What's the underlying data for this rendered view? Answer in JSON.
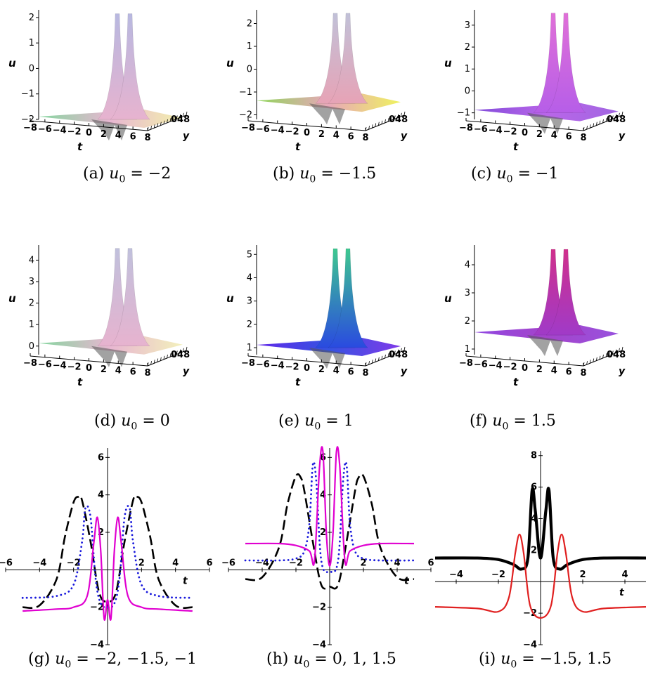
{
  "surface_panels": [
    {
      "caption_prefix": "(a)",
      "caption_var": "u",
      "caption_sub": "0",
      "caption_value": " = −2",
      "u0": -2,
      "zticks": [
        "2",
        "1",
        "0",
        "−1",
        "−2"
      ],
      "zrange": [
        -2,
        2.3
      ],
      "tlabels": [
        "−8",
        "−6",
        "−4",
        "−2",
        "0",
        "2",
        "4",
        "6",
        "8"
      ],
      "ylabels": "048",
      "xlabel": "t",
      "ylabel": "y",
      "zlabel": "u",
      "colors": {
        "left": "#7fd49a",
        "mid": "#e7b3cf",
        "right": "#f2f0a8",
        "peak": "#b8b8e0"
      }
    },
    {
      "caption_prefix": "(b)",
      "caption_var": "u",
      "caption_sub": "0",
      "caption_value": " = −1.5",
      "u0": -1.5,
      "zticks": [
        "2",
        "1",
        "0",
        "−1",
        "−2"
      ],
      "zrange": [
        -2.2,
        2.6
      ],
      "tlabels": [
        "−8",
        "−6",
        "−4",
        "−2",
        "0",
        "2",
        "4",
        "6",
        "8"
      ],
      "ylabels": "048",
      "xlabel": "t",
      "ylabel": "y",
      "zlabel": "u",
      "colors": {
        "left": "#8ad452",
        "mid": "#e7a3b6",
        "right": "#eef257",
        "peak": "#c1c1d8"
      }
    },
    {
      "caption_prefix": "(c)",
      "caption_var": "u",
      "caption_sub": "0",
      "caption_value": " = −1",
      "u0": -1,
      "zticks": [
        "3",
        "2",
        "1",
        "0",
        "−1"
      ],
      "zrange": [
        -1.3,
        3.7
      ],
      "tlabels": [
        "−8",
        "−6",
        "−4",
        "−2",
        "0",
        "2",
        "4",
        "6",
        "8"
      ],
      "ylabels": "048",
      "xlabel": "t",
      "ylabel": "y",
      "zlabel": "u",
      "colors": {
        "left": "#7a42d8",
        "mid": "#b65ee8",
        "right": "#9c5ee0",
        "peak": "#e070d8"
      }
    },
    {
      "caption_prefix": "(d)",
      "caption_var": "u",
      "caption_sub": "0",
      "caption_value": " = 0",
      "u0": 0,
      "zticks": [
        "4",
        "3",
        "2",
        "1",
        "0"
      ],
      "zrange": [
        -0.4,
        4.7
      ],
      "tlabels": [
        "−8",
        "−6",
        "−4",
        "−2",
        "0",
        "2",
        "4",
        "6",
        "8"
      ],
      "ylabels": "048",
      "xlabel": "t",
      "ylabel": "y",
      "zlabel": "u",
      "colors": {
        "left": "#7fd49a",
        "mid": "#e7b3cf",
        "right": "#f2f0b8",
        "peak": "#c0c0dc"
      }
    },
    {
      "caption_prefix": "(e)",
      "caption_var": "u",
      "caption_sub": "0",
      "caption_value": " = 1",
      "u0": 1,
      "zticks": [
        "5",
        "4",
        "3",
        "2",
        "1"
      ],
      "zrange": [
        0.7,
        5.4
      ],
      "tlabels": [
        "−8",
        "−6",
        "−4",
        "−2",
        "0",
        "2",
        "4",
        "6",
        "8"
      ],
      "ylabels": "048",
      "xlabel": "t",
      "ylabel": "y",
      "zlabel": "u",
      "colors": {
        "left": "#5a1ee8",
        "mid": "#2a4ae0",
        "right": "#7a30e8",
        "peak": "#3ec890"
      }
    },
    {
      "caption_prefix": "(f)",
      "caption_var": "u",
      "caption_sub": "0",
      "caption_value": " = 1.5",
      "u0": 1.5,
      "zticks": [
        "4",
        "3",
        "2",
        "1"
      ],
      "zrange": [
        0.8,
        4.7
      ],
      "tlabels": [
        "−8",
        "−6",
        "−4",
        "−2",
        "0",
        "2",
        "4",
        "6",
        "8"
      ],
      "ylabels": "048",
      "xlabel": "t",
      "ylabel": "y",
      "zlabel": "u",
      "colors": {
        "left": "#8a3ee0",
        "mid": "#a03ac8",
        "right": "#9248dc",
        "peak": "#d0308c"
      }
    }
  ],
  "chart_data": [
    {
      "type": "line",
      "caption_prefix": "(g)",
      "caption_var": "u",
      "caption_sub": "0",
      "caption_value": " = −2, −1.5, −1",
      "xlabel": "t",
      "xlim": [
        -6,
        6
      ],
      "ylim": [
        -4,
        6.5
      ],
      "xticks": [
        -6,
        -4,
        -2,
        2,
        4,
        6
      ],
      "xtick_labels": [
        "−6",
        "−4",
        "−2",
        "2",
        "4",
        "6"
      ],
      "yticks": [
        -4,
        -2,
        2,
        4,
        6
      ],
      "ytick_labels": [
        "−4",
        "−2",
        "2",
        "4",
        "6"
      ],
      "series": [
        {
          "u0": -2,
          "color": "#000000",
          "style": "dash",
          "width": 2.6,
          "width_param": 0.7,
          "x": [
            -5,
            -4,
            -3,
            -2.5,
            -2,
            -1.7,
            -1.5,
            -1,
            -0.5,
            0,
            0.5,
            1,
            1.5,
            1.7,
            2,
            2.5,
            3,
            4,
            5
          ],
          "y": [
            -2.0,
            -1.9,
            -0.5,
            1.8,
            3.6,
            3.9,
            3.7,
            1.5,
            -1.2,
            -1.7,
            -1.2,
            1.5,
            3.7,
            3.9,
            3.6,
            1.8,
            -0.5,
            -1.9,
            -2.0
          ]
        },
        {
          "u0": -1.5,
          "color": "#1a1adc",
          "style": "dot",
          "width": 2.8,
          "width_param": 0.55,
          "x": [
            -5,
            -3,
            -2,
            -1.5,
            -1.3,
            -1,
            -0.7,
            -0.4,
            0,
            0.4,
            0.7,
            1,
            1.3,
            1.5,
            2,
            3,
            5
          ],
          "y": [
            -1.5,
            -1.4,
            -0.8,
            1.5,
            3.3,
            2.8,
            -0.5,
            -1.8,
            -2.0,
            -1.8,
            -0.5,
            2.8,
            3.3,
            1.5,
            -0.8,
            -1.4,
            -1.5
          ]
        },
        {
          "u0": -1,
          "color": "#e000d0",
          "style": "solid",
          "width": 2.2,
          "width_param": 0.45,
          "x": [
            -5,
            -3,
            -2,
            -1.2,
            -0.8,
            -0.6,
            -0.4,
            -0.2,
            0,
            0.2,
            0.4,
            0.6,
            0.8,
            1.2,
            2,
            3,
            5
          ],
          "y": [
            -2.2,
            -2.1,
            -2.0,
            -1.4,
            1.5,
            2.8,
            1.0,
            -2.6,
            -1.6,
            -2.6,
            1.0,
            2.8,
            1.5,
            -1.4,
            -2.0,
            -2.1,
            -2.2
          ]
        }
      ]
    },
    {
      "type": "line",
      "caption_prefix": "(h)",
      "caption_var": "u",
      "caption_sub": "0",
      "caption_value": " = 0, 1, 1.5",
      "xlabel": "t",
      "xlim": [
        -6,
        6
      ],
      "ylim": [
        -4,
        6.5
      ],
      "xticks": [
        -6,
        -4,
        -2,
        2,
        4,
        6
      ],
      "xtick_labels": [
        "−6",
        "−4",
        "−2",
        "2",
        "4",
        "6"
      ],
      "yticks": [
        -4,
        -2,
        2,
        4,
        6
      ],
      "ytick_labels": [
        "−4",
        "−2",
        "2",
        "4",
        "6"
      ],
      "series": [
        {
          "u0": 0,
          "color": "#000000",
          "style": "dash",
          "width": 2.6,
          "x": [
            -5,
            -4,
            -3,
            -2.5,
            -2,
            -1.7,
            -1.5,
            -1,
            -0.5,
            0,
            0.5,
            1,
            1.5,
            1.7,
            2,
            2.5,
            3,
            4,
            5
          ],
          "y": [
            -0.5,
            -0.4,
            1.2,
            3.5,
            5.0,
            4.9,
            4.2,
            1.5,
            -0.8,
            -0.9,
            -0.8,
            1.5,
            4.2,
            4.9,
            5.0,
            3.5,
            1.2,
            -0.4,
            -0.5
          ]
        },
        {
          "u0": 1,
          "color": "#1a1adc",
          "style": "dot",
          "width": 2.8,
          "x": [
            -5,
            -3,
            -2,
            -1.5,
            -1.2,
            -1,
            -0.8,
            -0.5,
            0,
            0.5,
            0.8,
            1,
            1.2,
            1.5,
            2,
            3,
            5
          ],
          "y": [
            0.5,
            0.5,
            0.6,
            1.0,
            2.5,
            5.6,
            4.8,
            0.5,
            -0.1,
            0.5,
            4.8,
            5.6,
            2.5,
            1.0,
            0.6,
            0.5,
            0.5
          ]
        },
        {
          "u0": 1.5,
          "color": "#e000d0",
          "style": "solid",
          "width": 2.2,
          "x": [
            -5,
            -3,
            -2,
            -1.2,
            -0.9,
            -0.6,
            -0.4,
            -0.2,
            0,
            0.2,
            0.4,
            0.6,
            0.9,
            1.2,
            2,
            3,
            5
          ],
          "y": [
            1.4,
            1.4,
            1.3,
            1.0,
            0.5,
            5.5,
            6.3,
            2.0,
            0.2,
            2.0,
            6.3,
            5.5,
            0.5,
            1.0,
            1.3,
            1.4,
            1.4
          ]
        }
      ]
    },
    {
      "type": "line",
      "caption_prefix": "(i)",
      "caption_var": "u",
      "caption_sub": "0",
      "caption_value": " = −1.5, 1.5",
      "xlabel": "t",
      "xlim": [
        -5,
        5
      ],
      "ylim": [
        -4,
        8.3
      ],
      "xticks": [
        -4,
        -2,
        2,
        4
      ],
      "xtick_labels": [
        "−4",
        "−2",
        "2",
        "4"
      ],
      "yticks": [
        -4,
        -2,
        2,
        4,
        6,
        8
      ],
      "ytick_labels": [
        "−4",
        "−2",
        "2",
        "4",
        "6",
        "8"
      ],
      "series": [
        {
          "u0": 1.5,
          "color": "#000000",
          "style": "solid",
          "width": 4.2,
          "x": [
            -5,
            -3,
            -2,
            -1.3,
            -0.9,
            -0.6,
            -0.4,
            -0.25,
            0,
            0.25,
            0.4,
            0.6,
            0.9,
            1.3,
            2,
            3,
            5
          ],
          "y": [
            1.5,
            1.5,
            1.4,
            1.1,
            0.8,
            1.5,
            5.8,
            4.5,
            1.5,
            4.5,
            5.8,
            1.5,
            0.8,
            1.1,
            1.4,
            1.5,
            1.5
          ]
        },
        {
          "u0": -1.5,
          "color": "#e02020",
          "style": "solid",
          "width": 2.2,
          "x": [
            -5,
            -3,
            -2,
            -1.5,
            -1.2,
            -1,
            -0.8,
            -0.5,
            0,
            0.5,
            0.8,
            1,
            1.2,
            1.5,
            2,
            3,
            5
          ],
          "y": [
            -1.6,
            -1.7,
            -1.9,
            -1.0,
            1.8,
            3.0,
            1.8,
            -1.5,
            -2.3,
            -1.5,
            1.8,
            3.0,
            1.8,
            -1.0,
            -1.9,
            -1.7,
            -1.6
          ]
        }
      ]
    }
  ]
}
